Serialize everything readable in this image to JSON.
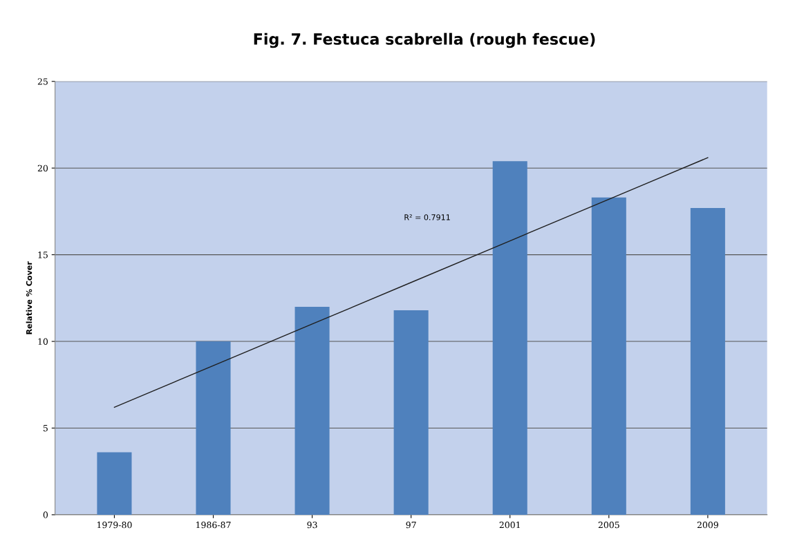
{
  "chart_data": {
    "type": "bar",
    "title": "Fig. 7. Festuca scabrella (rough fescue)",
    "ylabel": "Relative % Cover",
    "categories": [
      "1979-80",
      "1986-87",
      "93",
      "97",
      "2001",
      "2005",
      "2009"
    ],
    "series": [
      {
        "color": "#4f81bd",
        "values": [
          3.6,
          10.0,
          12.0,
          11.8,
          20.4,
          18.3,
          17.7
        ]
      },
      {
        "type": "line",
        "color": "#1f1f1f",
        "values": [
          6.2,
          8.6,
          11.0,
          13.4,
          15.8,
          18.2,
          20.6
        ]
      }
    ],
    "annotations": [
      "R² = 0.7911"
    ],
    "ylim": [
      0,
      25
    ],
    "yticks": [
      0,
      5,
      10,
      15,
      20,
      25
    ],
    "grid": "y",
    "legend": false
  }
}
